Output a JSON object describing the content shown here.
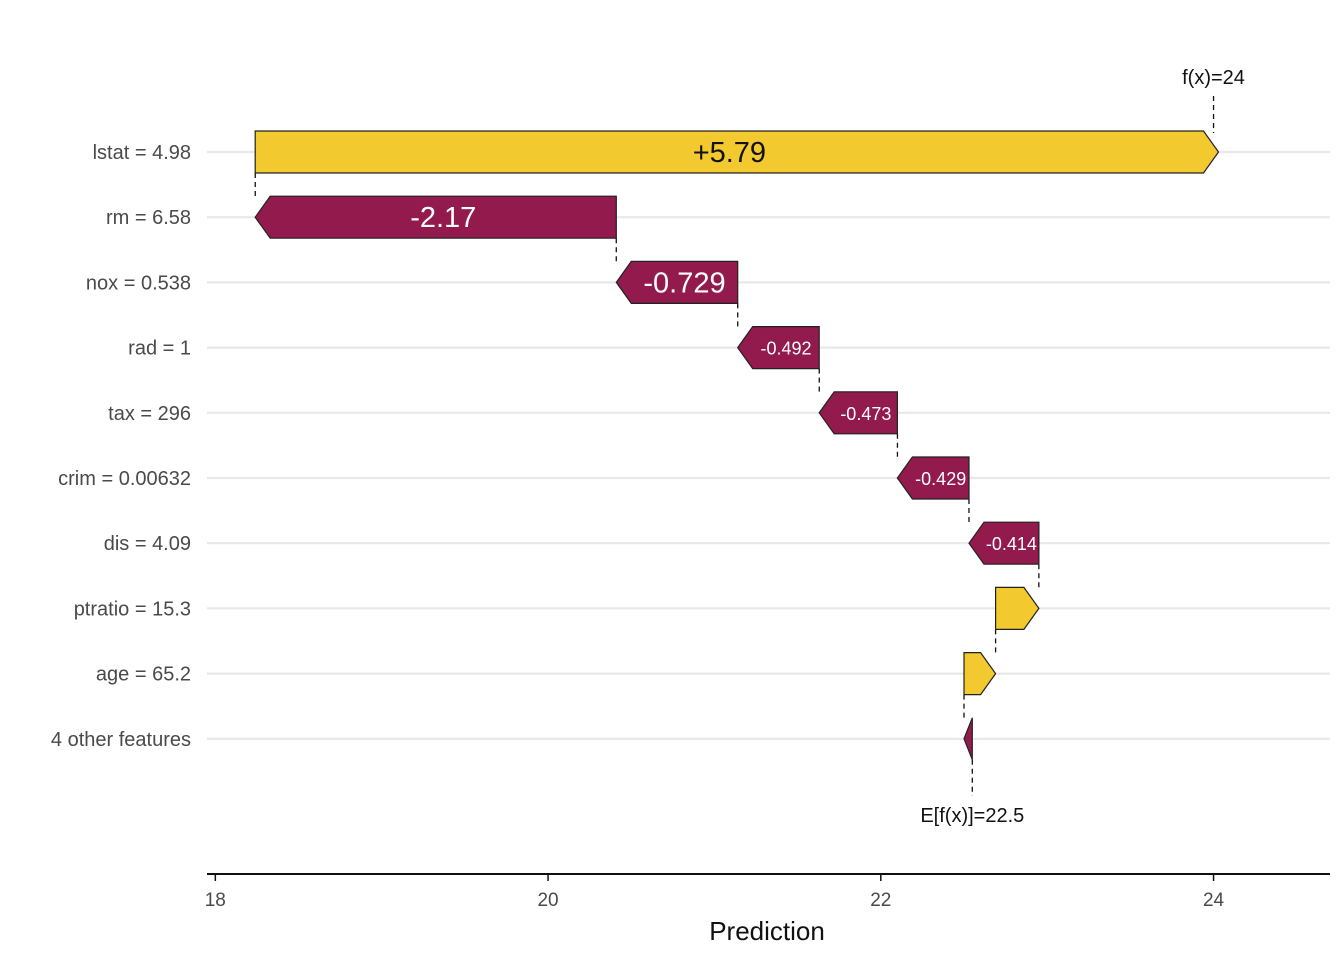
{
  "chart_data": {
    "type": "waterfall",
    "title": "",
    "xlabel": "Prediction",
    "ylabel": "",
    "xlim": [
      17.95,
      24.7
    ],
    "xticks": [
      18,
      20,
      22,
      24
    ],
    "base_value": 22.5,
    "base_label": "E[f(x)]=22.5",
    "final_value": 24,
    "final_label": "f(x)=24",
    "grid": true,
    "colors": {
      "positive": "#F2C92F",
      "negative": "#931A4D"
    },
    "features": [
      {
        "label": "lstat = 4.98",
        "value": 5.79,
        "text": "+5.79",
        "start": 18.24,
        "end": 24.03
      },
      {
        "label": "rm = 6.58",
        "value": -2.17,
        "text": "-2.17",
        "start": 20.41,
        "end": 18.24
      },
      {
        "label": "nox = 0.538",
        "value": -0.729,
        "text": "-0.729",
        "start": 21.14,
        "end": 20.41
      },
      {
        "label": "rad = 1",
        "value": -0.492,
        "text": "-0.492",
        "start": 21.63,
        "end": 21.14
      },
      {
        "label": "tax = 296",
        "value": -0.473,
        "text": "-0.473",
        "start": 22.1,
        "end": 21.63
      },
      {
        "label": "crim = 0.00632",
        "value": -0.429,
        "text": "-0.429",
        "start": 22.53,
        "end": 22.1
      },
      {
        "label": "dis = 4.09",
        "value": -0.414,
        "text": "-0.414",
        "start": 22.95,
        "end": 22.53
      },
      {
        "label": "ptratio = 15.3",
        "value": 0.26,
        "text": "",
        "start": 22.69,
        "end": 22.95
      },
      {
        "label": "age = 65.2",
        "value": 0.19,
        "text": "",
        "start": 22.5,
        "end": 22.69
      },
      {
        "label": "4 other features",
        "value": -0.05,
        "text": "",
        "start": 22.55,
        "end": 22.5
      }
    ]
  }
}
